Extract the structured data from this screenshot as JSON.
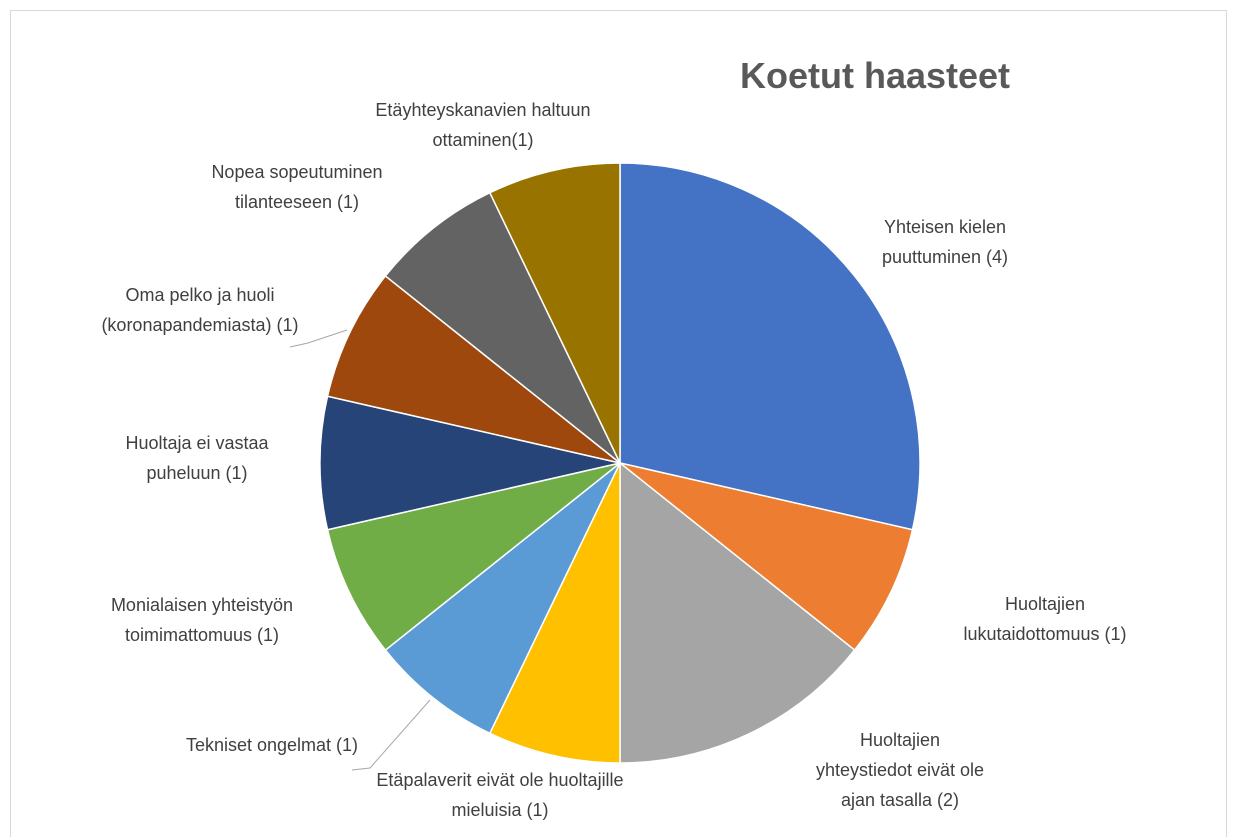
{
  "chart_data": {
    "type": "pie",
    "title": "Koetut haasteet",
    "categories": [
      "Yhteisen kielen puuttuminen (4)",
      "Huoltajien lukutaidottomuus (1)",
      "Huoltajien yhteystiedot eivät ole ajan tasalla (2)",
      "Etäpalaverit eivät ole huoltajille mieluisia (1)",
      "Tekniset ongelmat (1)",
      "Monialaisen yhteistyön toimimattomuus (1)",
      "Huoltaja ei vastaa puheluun (1)",
      "Oma pelko ja huoli (koronapandemiasta) (1)",
      "Nopea sopeutuminen tilanteeseen (1)",
      "Etäyhteyskanavien haltuun ottaminen(1)"
    ],
    "values": [
      4,
      1,
      2,
      1,
      1,
      1,
      1,
      1,
      1,
      1
    ],
    "colors": [
      "#4472c4",
      "#ed7d31",
      "#a5a5a5",
      "#ffc000",
      "#5b9bd5",
      "#70ad47",
      "#264478",
      "#9e480e",
      "#636363",
      "#997300"
    ]
  }
}
